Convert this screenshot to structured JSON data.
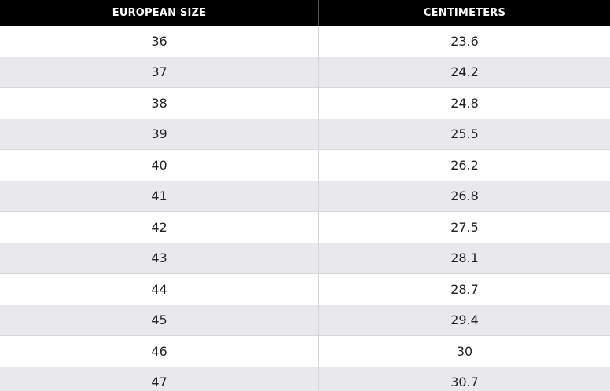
{
  "table": {
    "headers": [
      "EUROPEAN SIZE",
      "CENTIMETERS"
    ],
    "rows": [
      [
        "36",
        "23.6"
      ],
      [
        "37",
        "24.2"
      ],
      [
        "38",
        "24.8"
      ],
      [
        "39",
        "25.5"
      ],
      [
        "40",
        "26.2"
      ],
      [
        "41",
        "26.8"
      ],
      [
        "42",
        "27.5"
      ],
      [
        "43",
        "28.1"
      ],
      [
        "44",
        "28.7"
      ],
      [
        "45",
        "29.4"
      ],
      [
        "46",
        "30"
      ],
      [
        "47",
        "30.7"
      ]
    ]
  }
}
